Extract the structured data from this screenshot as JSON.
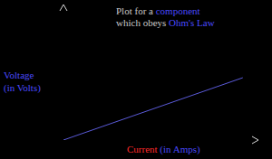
{
  "chart_data": {
    "type": "line",
    "title": "Plot for a component which obeys Ohm's Law",
    "x_label": "Current (in Amps)",
    "y_label": "Voltage (in Volts)",
    "x": [
      0,
      9.2
    ],
    "values": [
      0,
      4.6
    ],
    "color": "#5a5ad8",
    "xlim": [
      0,
      10
    ],
    "ylim": [
      0,
      10
    ],
    "xticks": [],
    "yticks": [],
    "tick_labels": false,
    "grid": false
  }
}
